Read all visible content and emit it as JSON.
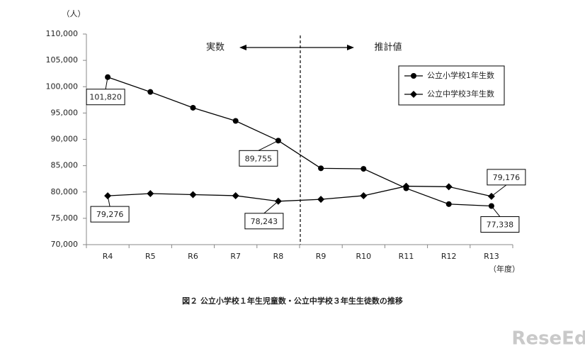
{
  "chart_data": {
    "type": "line",
    "caption": "図２ 公立小学校１年生児童数・公立中学校３年生生徒数の推移",
    "y_unit": "（人）",
    "x_unit": "（年度）",
    "annotations": {
      "actual": "実数",
      "estimate": "推計値"
    },
    "watermark": "ReseEd",
    "categories": [
      "R4",
      "R5",
      "R6",
      "R7",
      "R8",
      "R9",
      "R10",
      "R11",
      "R12",
      "R13"
    ],
    "series": [
      {
        "name": "公立小学校1年生数",
        "color": "#000000",
        "marker": "circle",
        "values": [
          101820,
          99000,
          96000,
          93500,
          89755,
          84500,
          84400,
          80700,
          77700,
          77338
        ],
        "value_labels": [
          "101,820",
          null,
          null,
          null,
          "89,755",
          null,
          null,
          null,
          null,
          "77,338"
        ]
      },
      {
        "name": "公立中学校3年生数",
        "color": "#000000",
        "marker": "diamond",
        "values": [
          79276,
          79700,
          79500,
          79300,
          78243,
          78600,
          79300,
          81100,
          81000,
          79176
        ],
        "value_labels": [
          "79,276",
          null,
          null,
          null,
          "78,243",
          null,
          null,
          null,
          null,
          "79,176"
        ]
      }
    ],
    "ylim": [
      70000,
      110000
    ],
    "yticks": [
      {
        "value": 70000,
        "label": "70,000"
      },
      {
        "value": 75000,
        "label": "75,000"
      },
      {
        "value": 80000,
        "label": "80,000"
      },
      {
        "value": 85000,
        "label": "85,000"
      },
      {
        "value": 90000,
        "label": "90,000"
      },
      {
        "value": 95000,
        "label": "95,000"
      },
      {
        "value": 100000,
        "label": "100,000"
      },
      {
        "value": 105000,
        "label": "105,000"
      },
      {
        "value": 110000,
        "label": "110,000"
      }
    ],
    "grid": false,
    "legend": "top-right"
  }
}
